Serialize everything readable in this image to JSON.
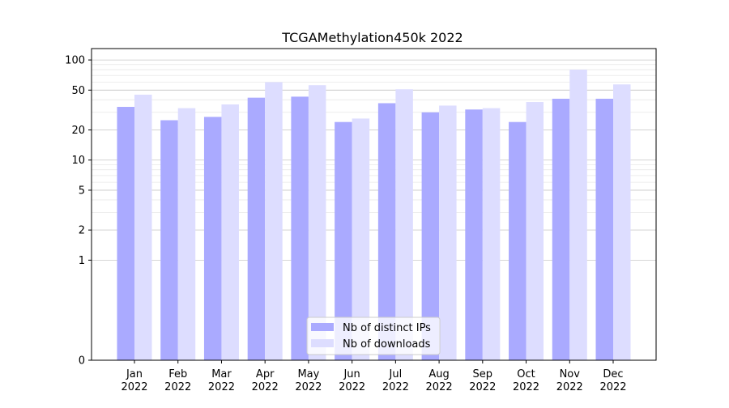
{
  "chart_data": {
    "type": "bar",
    "title": "TCGAMethylation450k 2022",
    "xlabel": "",
    "ylabel": "",
    "y_scale": "symlog",
    "ylim": [
      0,
      130
    ],
    "yticks": [
      0,
      1,
      2,
      5,
      10,
      20,
      50,
      100
    ],
    "categories": [
      "Jan\n2022",
      "Feb\n2022",
      "Mar\n2022",
      "Apr\n2022",
      "May\n2022",
      "Jun\n2022",
      "Jul\n2022",
      "Aug\n2022",
      "Sep\n2022",
      "Oct\n2022",
      "Nov\n2022",
      "Dec\n2022"
    ],
    "series": [
      {
        "name": "Nb of distinct IPs",
        "color": "#aaaaff",
        "values": [
          34,
          25,
          27,
          42,
          43,
          24,
          37,
          30,
          32,
          24,
          41,
          41
        ]
      },
      {
        "name": "Nb of downloads",
        "color": "#ddddff",
        "values": [
          45,
          33,
          36,
          60,
          56,
          26,
          51,
          35,
          33,
          38,
          80,
          57
        ]
      }
    ],
    "grid": true,
    "legend": "lower center"
  }
}
